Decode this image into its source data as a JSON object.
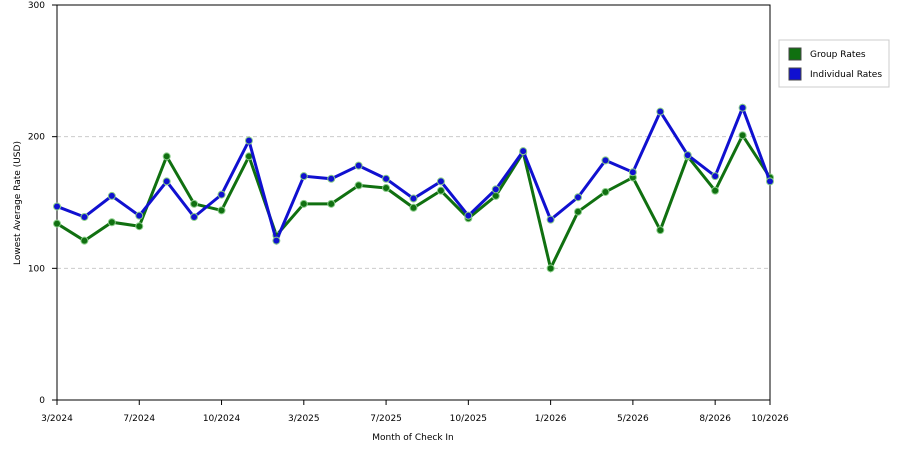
{
  "chart_data": {
    "type": "line",
    "x_label": "Month of Check In",
    "y_label": "Lowest Average Rate (USD)",
    "categories": [
      "3/2024",
      null,
      null,
      "7/2024",
      null,
      null,
      "10/2024",
      null,
      null,
      "3/2025",
      null,
      null,
      "7/2025",
      null,
      null,
      "10/2025",
      null,
      null,
      "1/2026",
      null,
      null,
      "5/2026",
      null,
      null,
      "8/2026",
      null,
      "10/2026"
    ],
    "series": [
      {
        "name": "Group Rates",
        "color": "#107010",
        "values": [
          134,
          121,
          135,
          132,
          185,
          149,
          144,
          185,
          125,
          149,
          149,
          163,
          161,
          146,
          159,
          138,
          155,
          188,
          100,
          143,
          158,
          169,
          129,
          185,
          159,
          201,
          169
        ]
      },
      {
        "name": "Individual Rates",
        "color": "#1010d0",
        "values": [
          147,
          139,
          155,
          140,
          166,
          139,
          156,
          197,
          121,
          170,
          168,
          178,
          168,
          153,
          166,
          140,
          160,
          189,
          137,
          154,
          182,
          173,
          219,
          186,
          170,
          222,
          166
        ]
      }
    ],
    "ylim": [
      0,
      300
    ],
    "yticks": [
      0,
      100,
      200,
      300
    ],
    "grid": true,
    "legend": "right"
  }
}
